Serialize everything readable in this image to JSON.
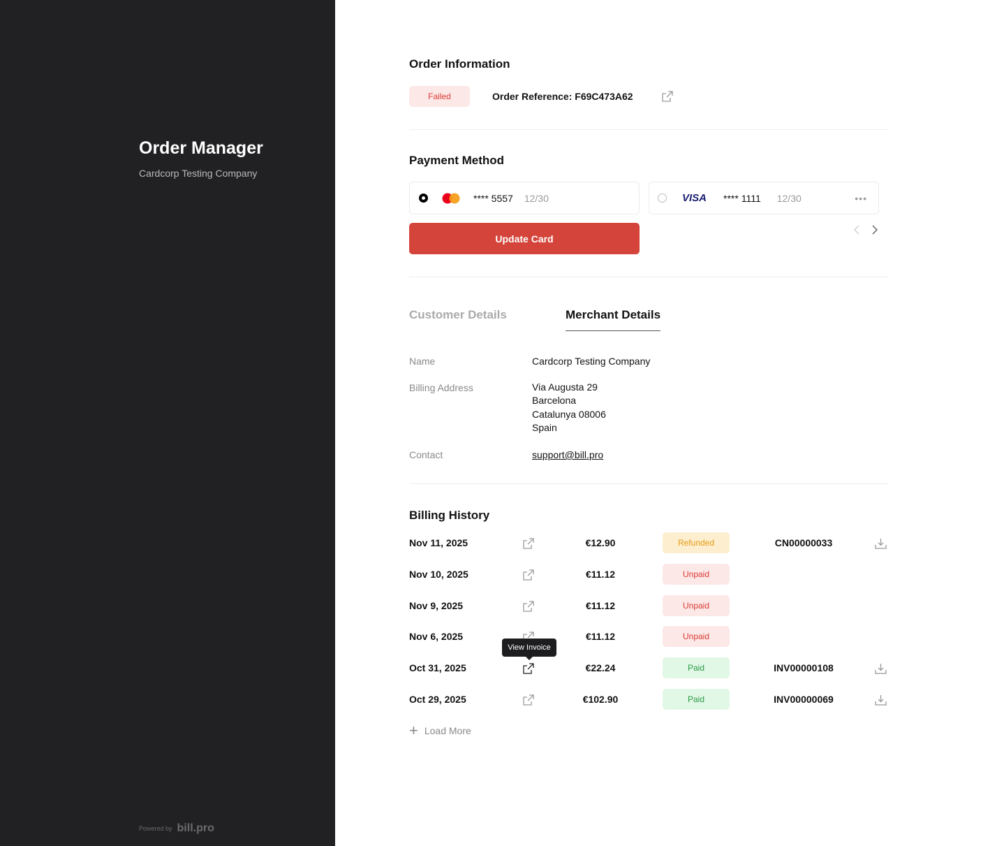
{
  "sidebar": {
    "title": "Order Manager",
    "subtitle": "Cardcorp Testing Company",
    "powered_by": "Powered by",
    "brand": "bill.pro"
  },
  "order": {
    "heading": "Order Information",
    "status": "Failed",
    "reference": "Order Reference: F69C473A62"
  },
  "payment": {
    "heading": "Payment Method",
    "cards": [
      {
        "brand": "mastercard",
        "number": "**** 5557",
        "expiry": "12/30",
        "selected": true
      },
      {
        "brand": "VISA",
        "number": "**** 1111",
        "expiry": "12/30",
        "selected": false
      }
    ],
    "update_label": "Update Card"
  },
  "tabs": [
    {
      "label": "Customer Details",
      "active": false
    },
    {
      "label": "Merchant Details",
      "active": true
    }
  ],
  "merchant": {
    "name_label": "Name",
    "name": "Cardcorp Testing Company",
    "address_label": "Billing Address",
    "address": [
      "Via Augusta 29",
      "Barcelona",
      "Catalunya 08006",
      "Spain"
    ],
    "contact_label": "Contact",
    "contact": "support@bill.pro"
  },
  "billing": {
    "heading": "Billing History",
    "tooltip": "View Invoice",
    "load_more": "Load More",
    "rows": [
      {
        "date": "Nov 11, 2025",
        "amount": "€12.90",
        "status": "Refunded",
        "invoice": "CN00000033"
      },
      {
        "date": "Nov 10, 2025",
        "amount": "€11.12",
        "status": "Unpaid",
        "invoice": ""
      },
      {
        "date": "Nov 9, 2025",
        "amount": "€11.12",
        "status": "Unpaid",
        "invoice": ""
      },
      {
        "date": "Nov 6, 2025",
        "amount": "€11.12",
        "status": "Unpaid",
        "invoice": ""
      },
      {
        "date": "Oct 31, 2025",
        "amount": "€22.24",
        "status": "Paid",
        "invoice": "INV00000108"
      },
      {
        "date": "Oct 29, 2025",
        "amount": "€102.90",
        "status": "Paid",
        "invoice": "INV00000069"
      }
    ]
  },
  "colors": {
    "sidebar": "#212123",
    "accent": "#d5443a"
  }
}
